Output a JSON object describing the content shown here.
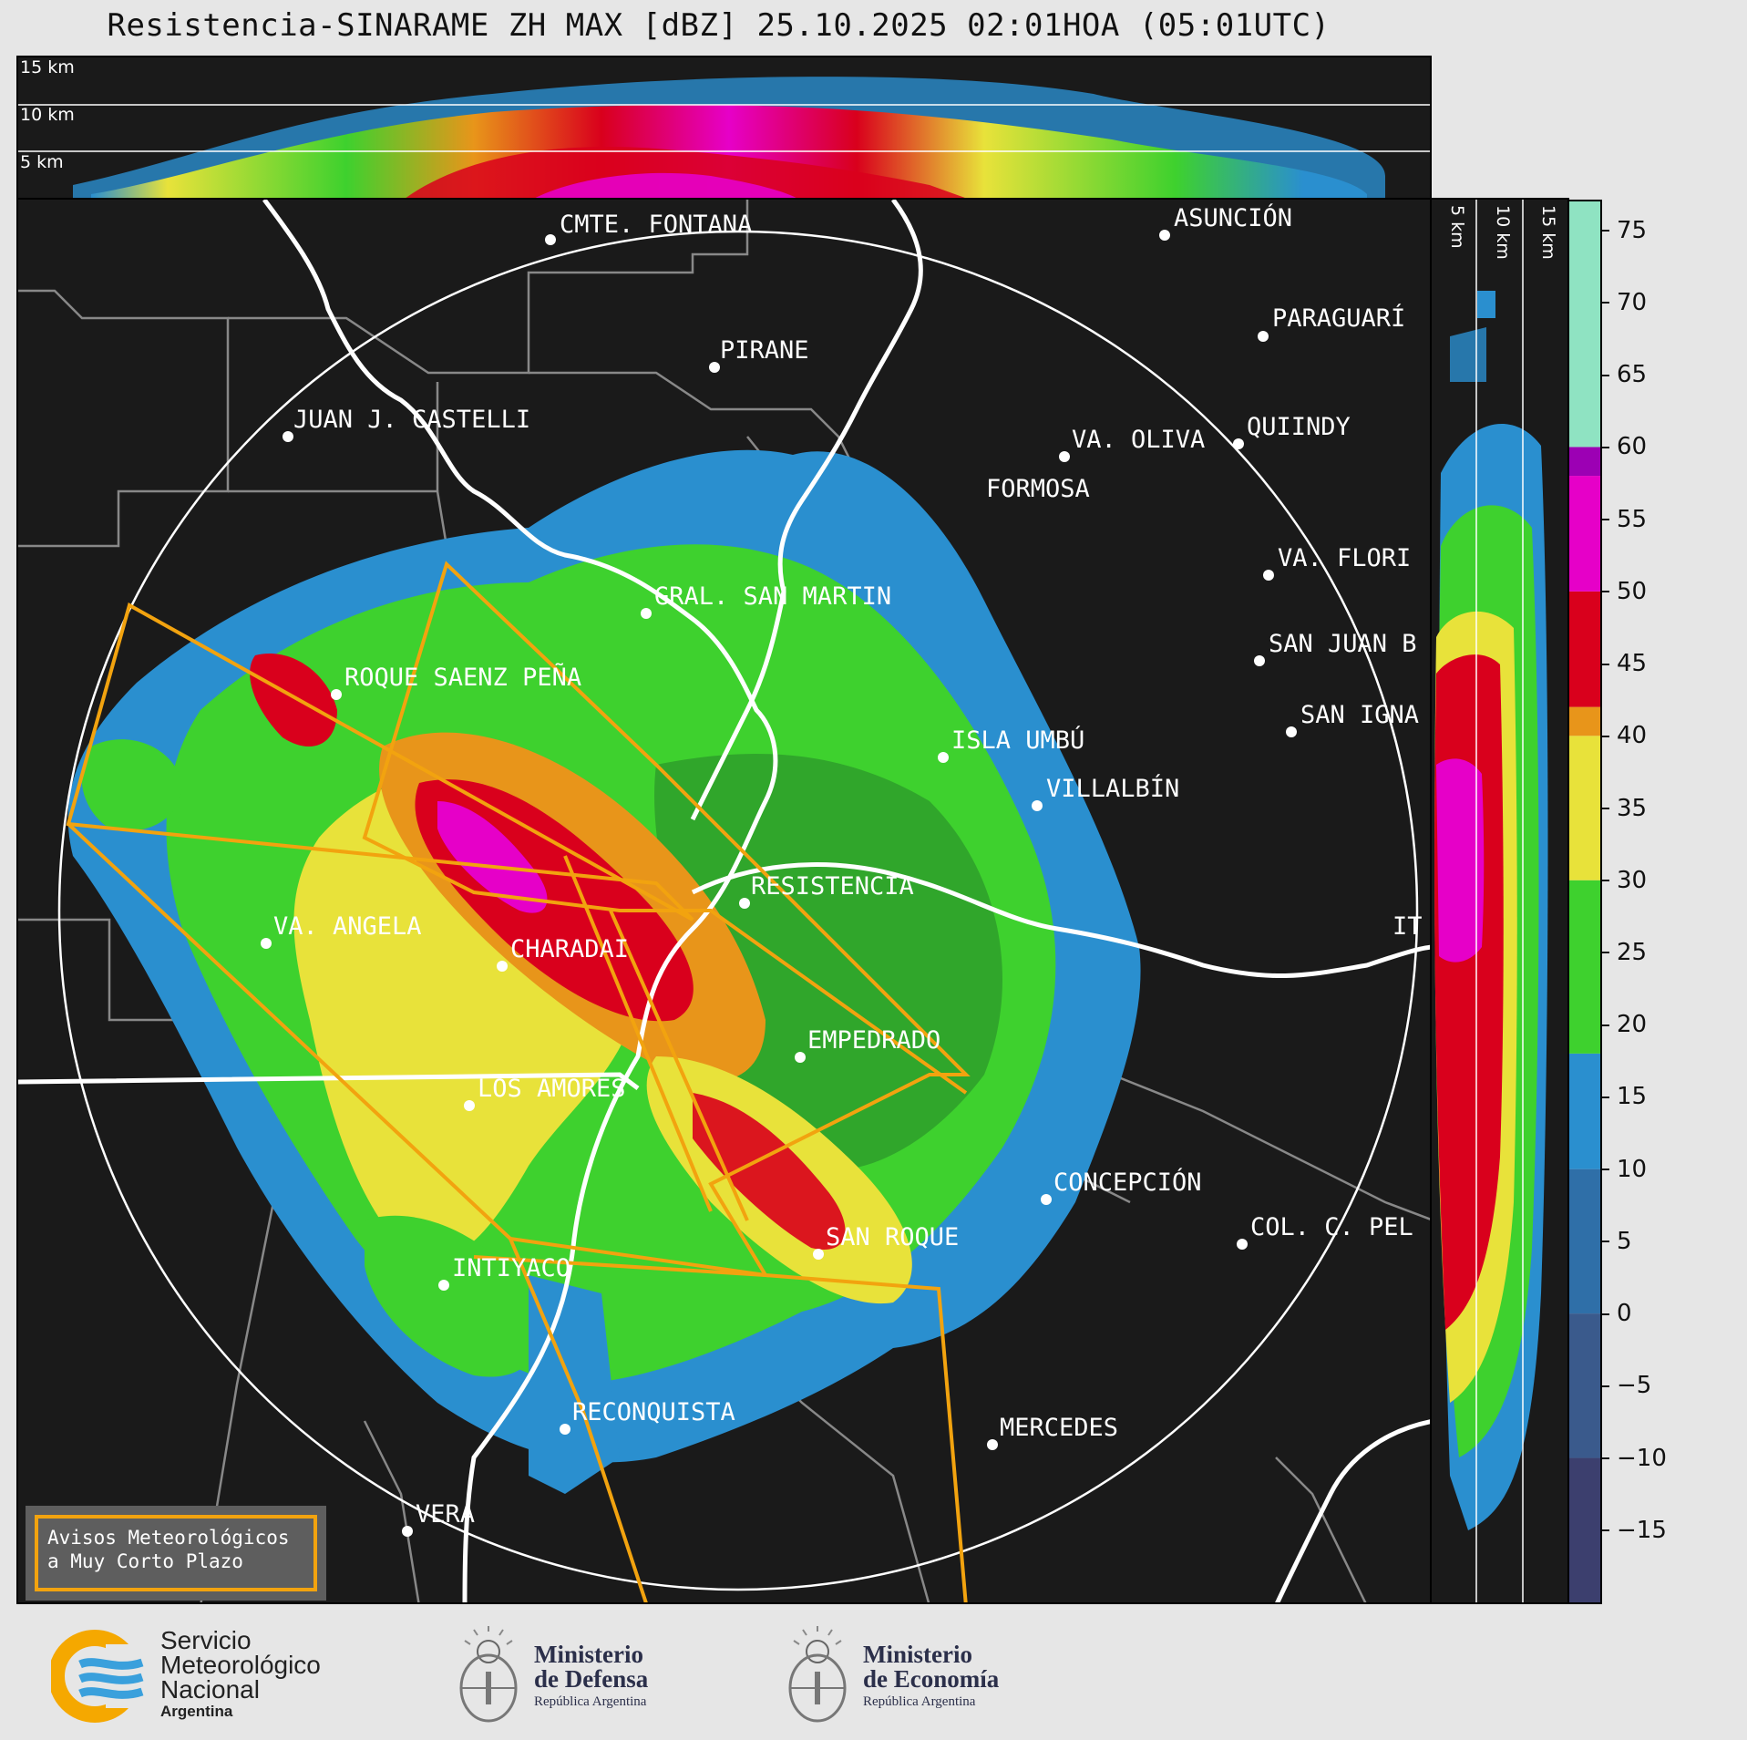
{
  "title": "Resistencia-SINARAME ZH MAX [dBZ] 25.10.2025 02:01HOA (05:01UTC)",
  "top_section": {
    "height_labels": [
      "15 km",
      "10 km",
      "5 km"
    ]
  },
  "right_section": {
    "height_labels": [
      "5 km",
      "10 km",
      "15 km"
    ]
  },
  "cities": [
    {
      "name": "CMTE. FONTANA"
    },
    {
      "name": "ASUNCIÓN"
    },
    {
      "name": "PARAGUARÍ"
    },
    {
      "name": "PIRANE"
    },
    {
      "name": "JUAN J. CASTELLI"
    },
    {
      "name": "VA. OLIVA"
    },
    {
      "name": "QUIINDY"
    },
    {
      "name": "FORMOSA"
    },
    {
      "name": "VA. FLORI"
    },
    {
      "name": "GRAL. SAN MARTIN"
    },
    {
      "name": "SAN JUAN B"
    },
    {
      "name": "ROQUE SAENZ PEÑA"
    },
    {
      "name": "SAN IGNA"
    },
    {
      "name": "ISLA UMBÚ"
    },
    {
      "name": "VILLALBÍN"
    },
    {
      "name": "RESISTENCIA"
    },
    {
      "name": "VA. ANGELA"
    },
    {
      "name": "CHARADAI"
    },
    {
      "name": "IT"
    },
    {
      "name": "EMPEDRADO"
    },
    {
      "name": "LOS AMORES"
    },
    {
      "name": "CONCEPCIÓN"
    },
    {
      "name": "SAN ROQUE"
    },
    {
      "name": "COL. C. PEL"
    },
    {
      "name": "INTIYACO"
    },
    {
      "name": "RECONQUISTA"
    },
    {
      "name": "MERCEDES"
    },
    {
      "name": "VERA"
    }
  ],
  "colorbar": {
    "unit": "dBZ",
    "ticks": [
      "75",
      "70",
      "65",
      "60",
      "55",
      "50",
      "45",
      "40",
      "35",
      "30",
      "25",
      "20",
      "15",
      "10",
      "5",
      "0",
      "−5",
      "−10",
      "−15"
    ],
    "min": -20,
    "max": 77,
    "stops": [
      {
        "from": -20,
        "to": -10,
        "color": "#3c3f6e"
      },
      {
        "from": -10,
        "to": 0,
        "color": "#3a5a8c"
      },
      {
        "from": 0,
        "to": 10,
        "color": "#2f6fa8"
      },
      {
        "from": 10,
        "to": 18,
        "color": "#2a8fcf"
      },
      {
        "from": 18,
        "to": 30,
        "color": "#3ed12e"
      },
      {
        "from": 30,
        "to": 40,
        "color": "#e8e23a"
      },
      {
        "from": 40,
        "to": 42,
        "color": "#e8951a"
      },
      {
        "from": 42,
        "to": 50,
        "color": "#d9001c"
      },
      {
        "from": 50,
        "to": 58,
        "color": "#e600c8"
      },
      {
        "from": 58,
        "to": 60,
        "color": "#9c00b4"
      },
      {
        "from": 60,
        "to": 77,
        "color": "#8fe3c2"
      }
    ]
  },
  "legend_box": {
    "line1": "Avisos Meteorológicos",
    "line2": "a Muy Corto Plazo"
  },
  "footer": {
    "smn": {
      "line1": "Servicio",
      "line2": "Meteorológico",
      "line3": "Nacional",
      "line4": "Argentina"
    },
    "defensa": {
      "line1": "Ministerio",
      "line2": "de Defensa",
      "line3": "República Argentina"
    },
    "economia": {
      "line1": "Ministerio",
      "line2": "de Economía",
      "line3": "República Argentina"
    }
  },
  "colors": {
    "background": "#1a1a1a",
    "warning_polygon": "#f2a30f",
    "rivers": "#ffffff",
    "boundaries": "#888888"
  }
}
